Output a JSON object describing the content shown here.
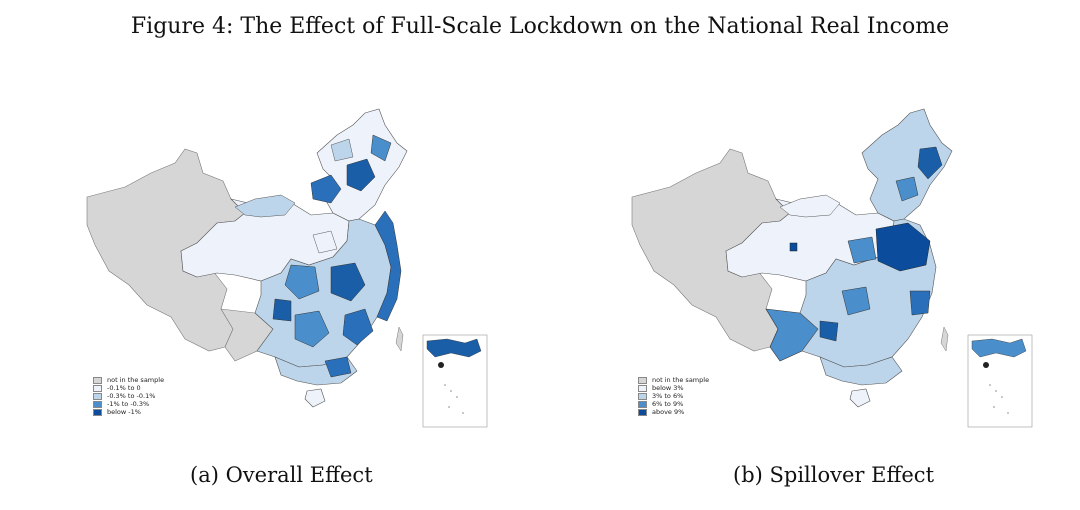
{
  "title": "Figure 4: The Effect of Full-Scale Lockdown on the National Real Income",
  "panels": [
    {
      "caption": "(a) Overall Effect",
      "legend": [
        {
          "label": "not in the sample",
          "color": "#d6d6d6"
        },
        {
          "label": "-0.1% to 0",
          "color": "#eef3fb"
        },
        {
          "label": "-0.3% to -0.1%",
          "color": "#bcd5ea"
        },
        {
          "label": "-1% to -0.3%",
          "color": "#4a8fcb"
        },
        {
          "label": "below -1%",
          "color": "#0b4d9c"
        }
      ]
    },
    {
      "caption": "(b) Spillover Effect",
      "legend": [
        {
          "label": "not in the sample",
          "color": "#d6d6d6"
        },
        {
          "label": "below 3%",
          "color": "#eef3fb"
        },
        {
          "label": "3% to 6%",
          "color": "#bcd5ea"
        },
        {
          "label": "6% to 9%",
          "color": "#4a8fcb"
        },
        {
          "label": "above 9%",
          "color": "#0b4d9c"
        }
      ]
    }
  ]
}
